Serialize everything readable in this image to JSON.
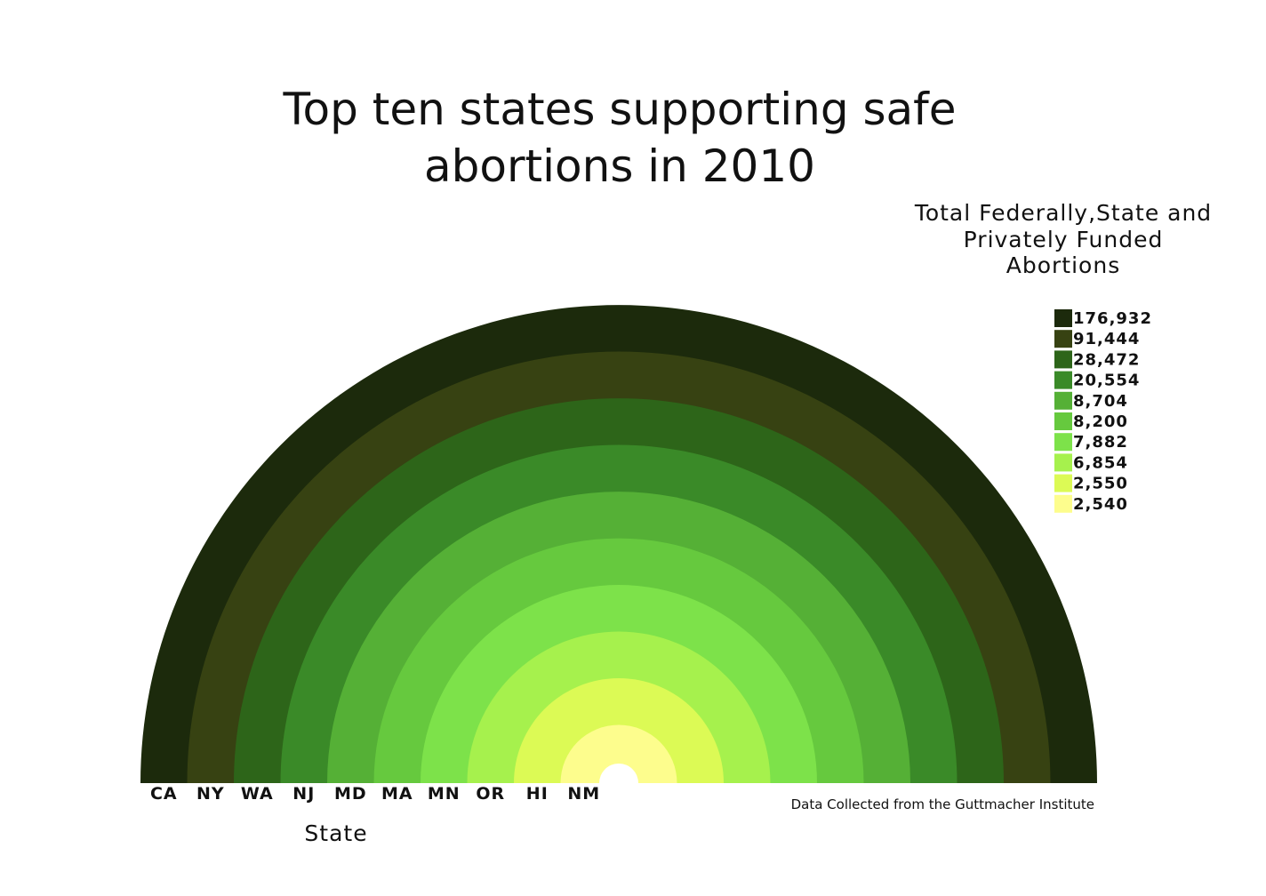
{
  "chart_data": {
    "type": "radial-stacked-semicircle",
    "title_lines": [
      "Top ten states supporting safe",
      "abortions in 2010"
    ],
    "legend_title_lines": [
      "Total Federally,State and",
      "Privately Funded",
      "Abortions"
    ],
    "xlabel": "State",
    "source": "Data Collected from the Guttmacher Institute",
    "categories": [
      "CA",
      "NY",
      "WA",
      "NJ",
      "MD",
      "MA",
      "MN",
      "OR",
      "HI",
      "NM"
    ],
    "values": [
      176932,
      91444,
      28472,
      20554,
      8704,
      8200,
      7882,
      6854,
      2550,
      2540
    ],
    "value_labels": [
      "176,932",
      "91,444",
      "28,472",
      "20,554",
      "8,704",
      "8,200",
      "7,882",
      "6,854",
      "2,550",
      "2,540"
    ],
    "colors": [
      "#1c2a0c",
      "#374212",
      "#2d6519",
      "#3a8a28",
      "#55b036",
      "#66c93e",
      "#7de24a",
      "#a6f14d",
      "#dcfa55",
      "#fdfd8d"
    ],
    "legend_placement": "top-right"
  }
}
